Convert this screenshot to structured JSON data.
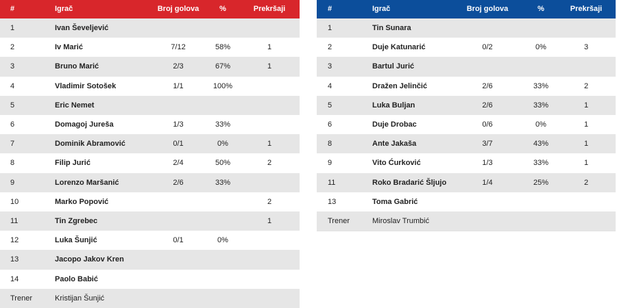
{
  "left_table": {
    "headers": [
      "#",
      "Igrač",
      "Broj golova",
      "%",
      "Prekršaji"
    ],
    "rows": [
      [
        "1",
        "Ivan Ševeljević",
        null,
        null,
        null
      ],
      [
        "2",
        "Iv Marić",
        "7/12",
        "58%",
        "1"
      ],
      [
        "3",
        "Bruno Marić",
        "2/3",
        "67%",
        "1"
      ],
      [
        "4",
        "Vladimir Sotošek",
        "1/1",
        "100%",
        null
      ],
      [
        "5",
        "Eric Nemet",
        null,
        null,
        null
      ],
      [
        "6",
        "Domagoj Jureša",
        "1/3",
        "33%",
        null
      ],
      [
        "7",
        "Dominik Abramović",
        "0/1",
        "0%",
        "1"
      ],
      [
        "8",
        "Filip Jurić",
        "2/4",
        "50%",
        "2"
      ],
      [
        "9",
        "Lorenzo Maršanić",
        "2/6",
        "33%",
        null
      ],
      [
        "10",
        "Marko Popović",
        null,
        null,
        "2"
      ],
      [
        "11",
        "Tin Zgrebec",
        null,
        null,
        "1"
      ],
      [
        "12",
        "Luka Šunjić",
        "0/1",
        "0%",
        null
      ],
      [
        "13",
        "Jacopo Jakov Kren",
        null,
        null,
        null
      ],
      [
        "14",
        "Paolo Babić",
        null,
        null,
        null
      ],
      [
        "Trener",
        "Kristijan Šunjić",
        null,
        null,
        null
      ]
    ]
  },
  "right_table": {
    "headers": [
      "#",
      "Igrač",
      "Broj golova",
      "%",
      "Prekršaji"
    ],
    "rows": [
      [
        "1",
        "Tin Sunara",
        null,
        null,
        null
      ],
      [
        "2",
        "Duje Katunarić",
        "0/2",
        "0%",
        "3"
      ],
      [
        "3",
        "Bartul Jurić",
        null,
        null,
        null
      ],
      [
        "4",
        "Dražen Jelinčić",
        "2/6",
        "33%",
        "2"
      ],
      [
        "5",
        "Luka Buljan",
        "2/6",
        "33%",
        "1"
      ],
      [
        "6",
        "Duje Drobac",
        "0/6",
        "0%",
        "1"
      ],
      [
        "8",
        "Ante Jakaša",
        "3/7",
        "43%",
        "1"
      ],
      [
        "9",
        "Vito Ćurković",
        "1/3",
        "33%",
        "1"
      ],
      [
        "11",
        "Roko Bradarić Šljujo",
        "1/4",
        "25%",
        "2"
      ],
      [
        "13",
        "Toma Gabrić",
        null,
        null,
        null
      ],
      [
        "Trener",
        "Miroslav Trumbić",
        null,
        null,
        null
      ]
    ]
  }
}
